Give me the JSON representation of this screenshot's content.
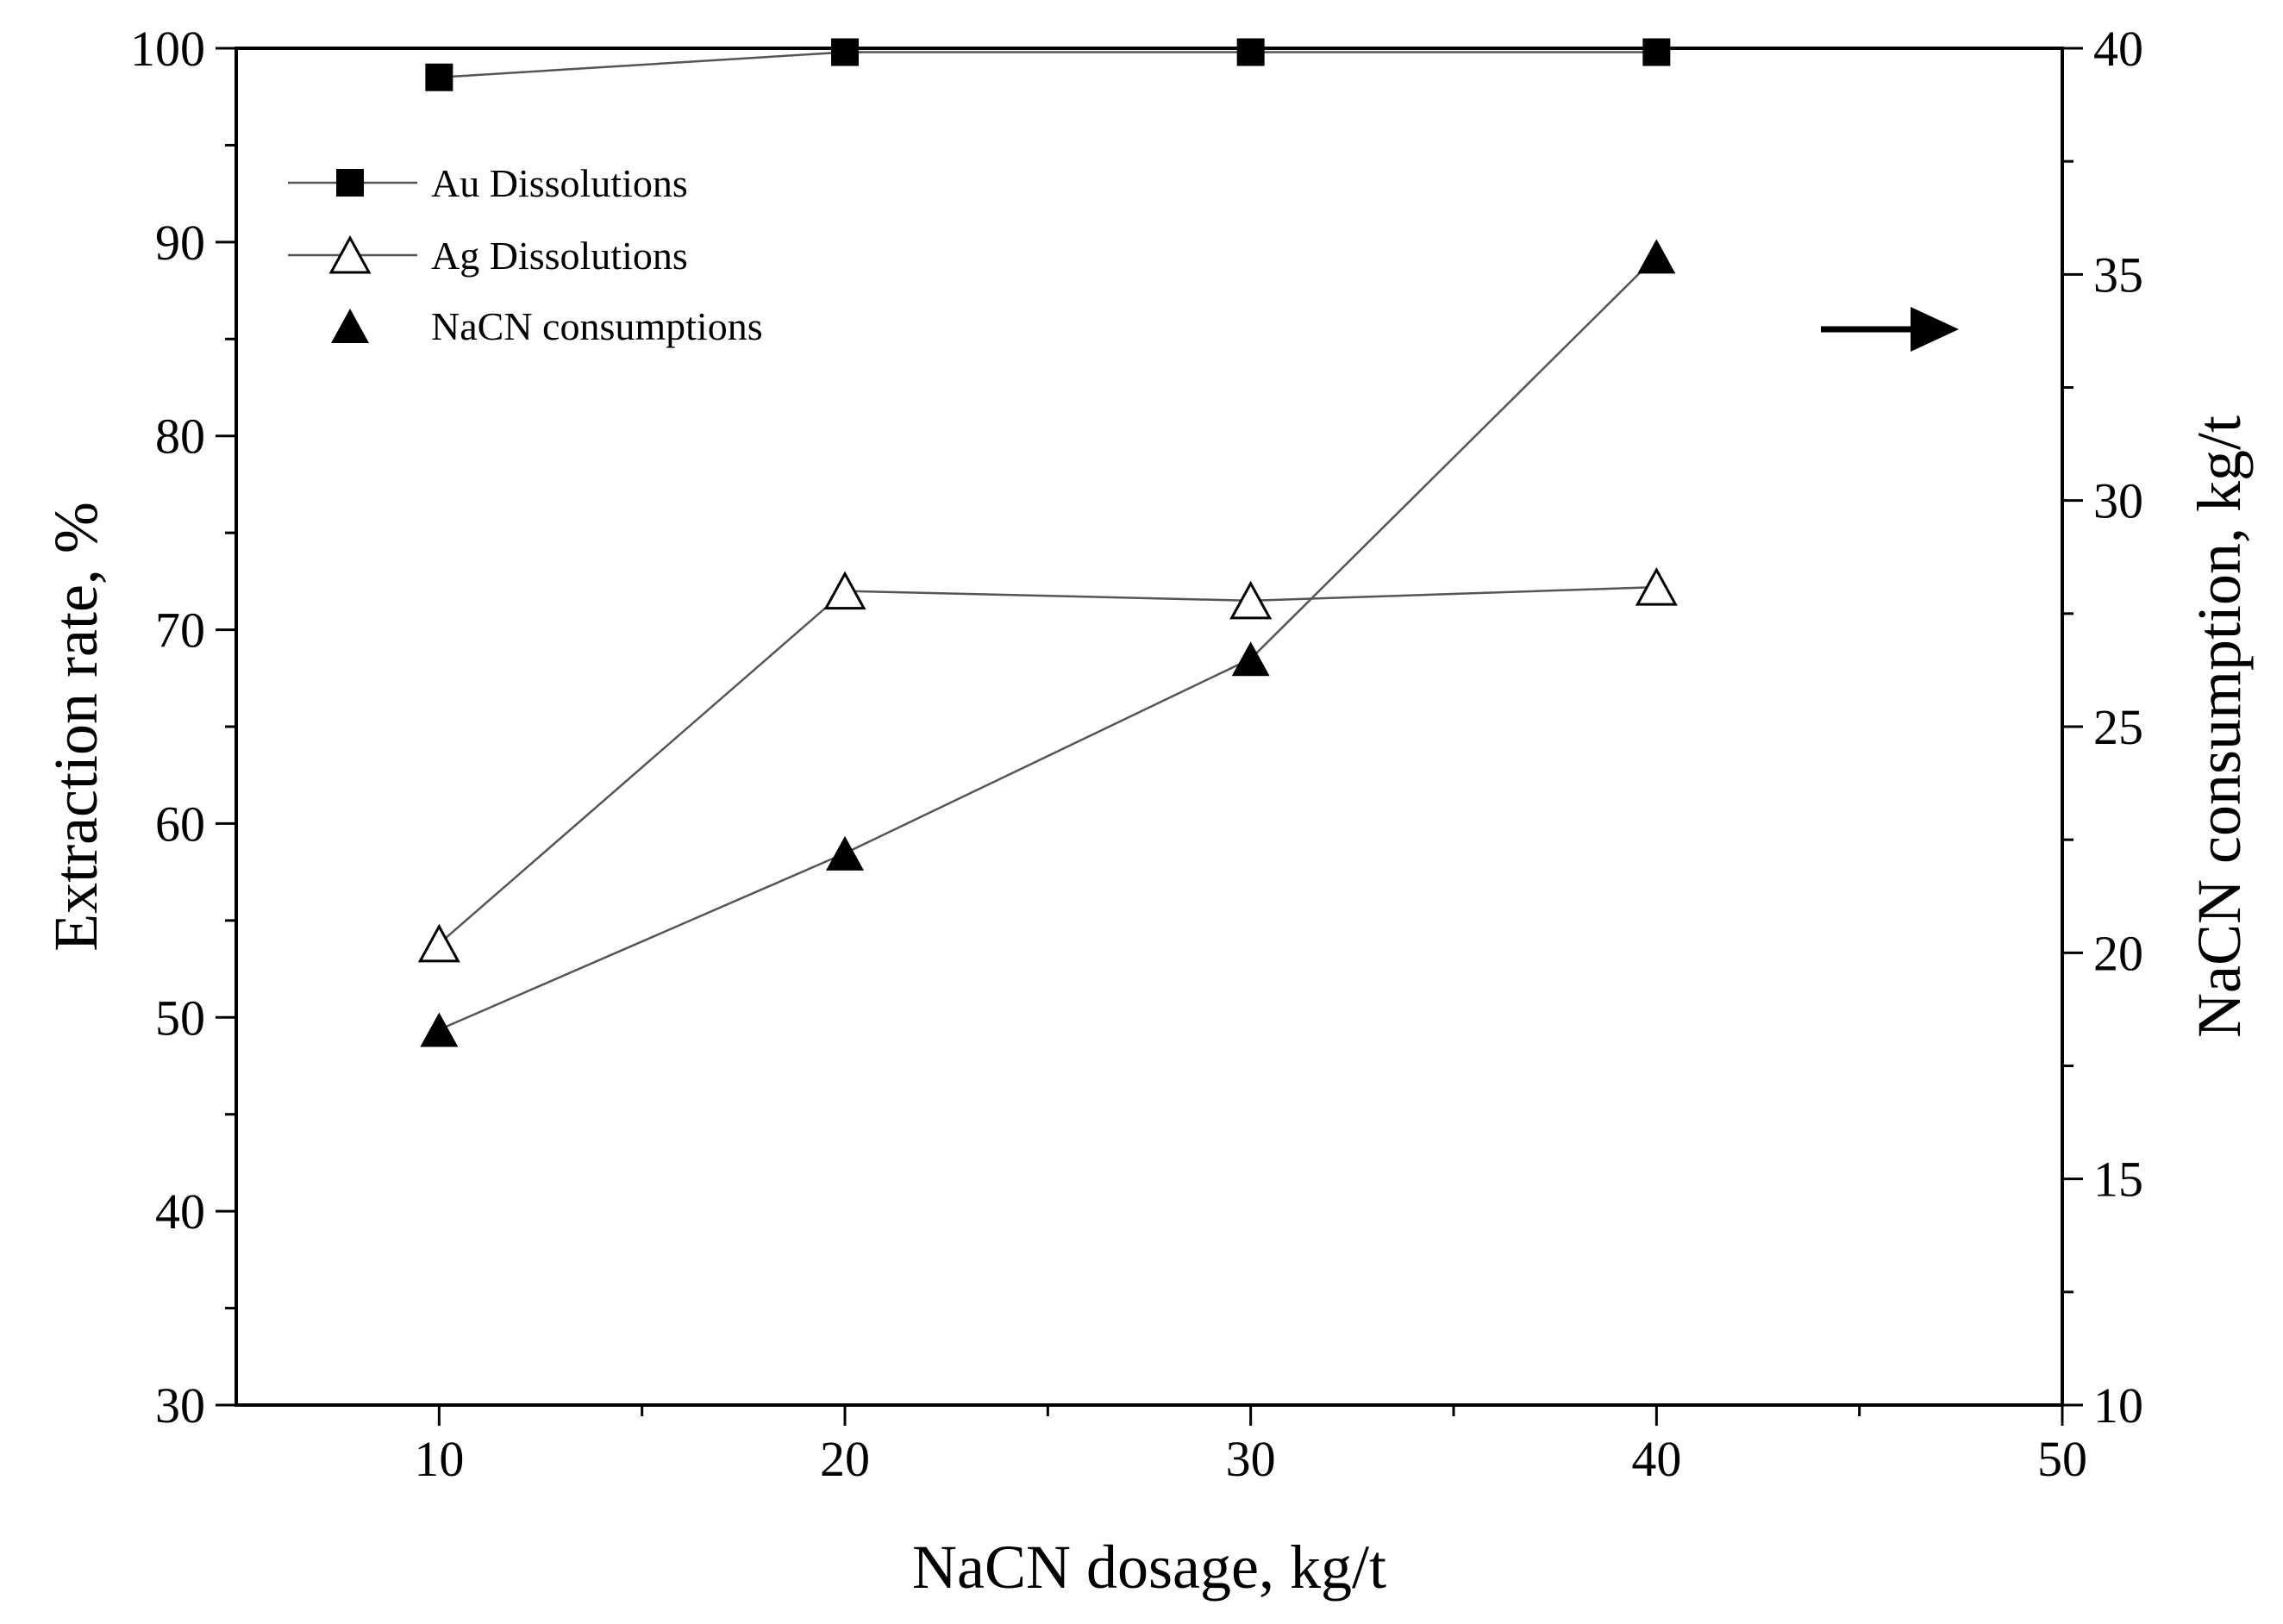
{
  "chart_data": {
    "type": "line",
    "title": "",
    "xlabel": "NaCN dosage, kg/t",
    "ylabel": "Extraction rate, %",
    "y2label": "NaCN consumption, kg/t",
    "xlim": [
      5,
      50
    ],
    "ylim": [
      30,
      100
    ],
    "y2lim": [
      10,
      40
    ],
    "x_ticks": [
      10,
      20,
      30,
      40,
      50
    ],
    "x_tick_labels": [
      "10",
      "20",
      "30",
      "40",
      "50"
    ],
    "y_ticks": [
      30,
      40,
      50,
      60,
      70,
      80,
      90,
      100
    ],
    "y_tick_labels": [
      "30",
      "40",
      "50",
      "60",
      "70",
      "80",
      "90",
      "100"
    ],
    "y2_ticks": [
      10,
      15,
      20,
      25,
      30,
      35,
      40
    ],
    "y2_tick_labels": [
      "10",
      "15",
      "20",
      "25",
      "30",
      "35",
      "40"
    ],
    "grid": false,
    "legend_position": "top-left",
    "annotations": [
      {
        "type": "arrow",
        "direction": "right",
        "meaning": "points to right axis"
      }
    ],
    "series": [
      {
        "name": "Au Dissolutions",
        "axis": "left",
        "marker": "filled-square",
        "color": "#000000",
        "x": [
          10,
          20,
          30,
          40
        ],
        "values": [
          98.5,
          99.8,
          99.8,
          99.8
        ]
      },
      {
        "name": "Ag Dissolutions",
        "axis": "left",
        "marker": "open-triangle",
        "color": "#000000",
        "x": [
          10,
          20,
          30,
          40
        ],
        "values": [
          53.8,
          72.0,
          71.5,
          72.2
        ]
      },
      {
        "name": "NaCN consumptions",
        "axis": "right",
        "marker": "filled-triangle",
        "color": "#000000",
        "x": [
          10,
          20,
          30,
          40
        ],
        "values": [
          18.3,
          22.2,
          26.5,
          35.4
        ]
      }
    ]
  }
}
